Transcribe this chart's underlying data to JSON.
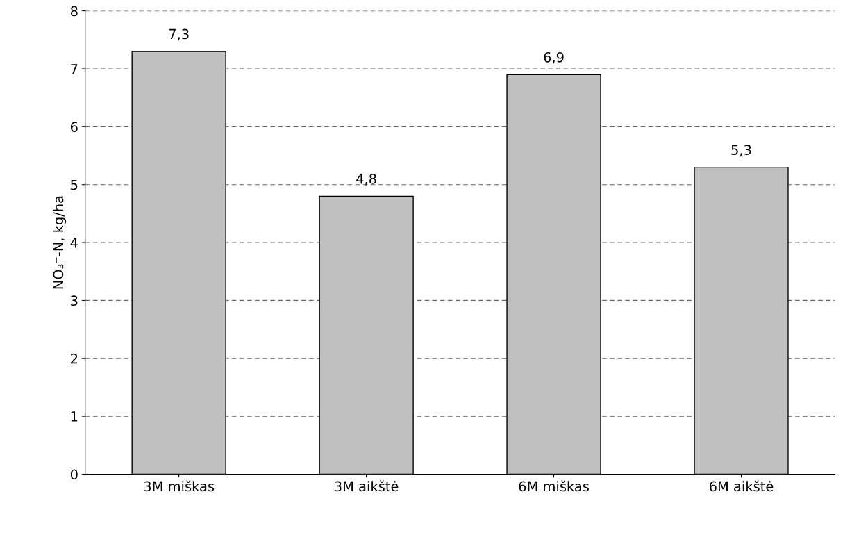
{
  "chart_data": {
    "type": "bar",
    "ylabel": "NO₃⁻-N, kg/ha",
    "categories": [
      "3M miškas",
      "3M aikštė",
      "6M miškas",
      "6M aikštė"
    ],
    "values": [
      7.3,
      4.8,
      6.9,
      5.3
    ],
    "value_labels": [
      "7,3",
      "4,8",
      "6,9",
      "5,3"
    ],
    "color": "#c0c0c0",
    "ylim": [
      0,
      8
    ],
    "yticks": [
      0,
      1,
      2,
      3,
      4,
      5,
      6,
      7,
      8
    ],
    "grid": "y"
  }
}
